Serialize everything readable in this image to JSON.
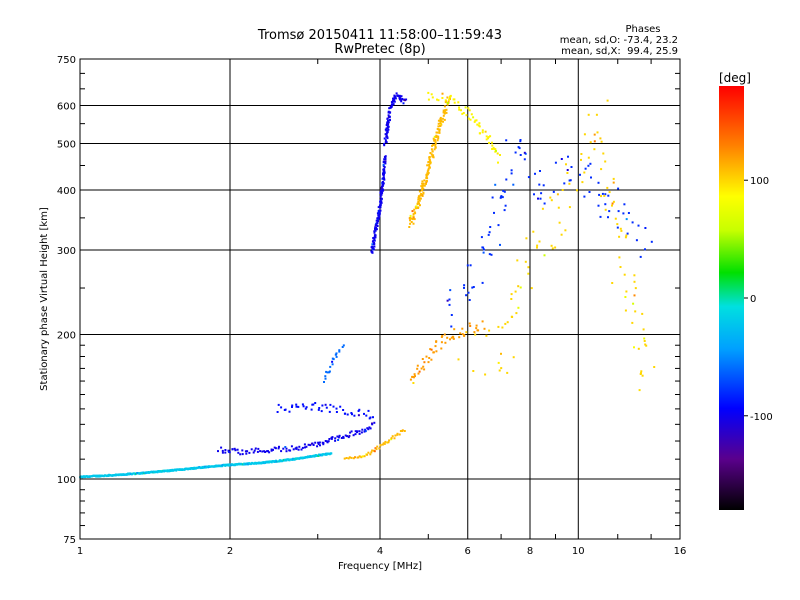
{
  "chart_data": {
    "type": "scatter",
    "title": "Tromsø 20150411 11:58:00–11:59:43",
    "subtitle": "RwPretec (8p)",
    "xlabel": "Frequency [MHz]",
    "ylabel": "Stationary phase Virtual Height [km]",
    "x_scale": "log",
    "y_scale": "log",
    "xlim": [
      1,
      16
    ],
    "ylim": [
      75,
      750
    ],
    "x_ticks": [
      {
        "value": 1,
        "label": "1"
      },
      {
        "value": 2,
        "label": "2"
      },
      {
        "value": 4,
        "label": "4"
      },
      {
        "value": 6,
        "label": "6"
      },
      {
        "value": 8,
        "label": "8"
      },
      {
        "value": 10,
        "label": "10"
      },
      {
        "value": 16,
        "label": "16"
      }
    ],
    "y_ticks": [
      {
        "value": 75,
        "label": "75"
      },
      {
        "value": 100,
        "label": "100"
      },
      {
        "value": 200,
        "label": "200"
      },
      {
        "value": 300,
        "label": "300"
      },
      {
        "value": 400,
        "label": "400"
      },
      {
        "value": 500,
        "label": "500"
      },
      {
        "value": 600,
        "label": "600"
      },
      {
        "value": 750,
        "label": "750"
      }
    ],
    "grid": true,
    "stats": {
      "heading": "Phases",
      "line_o": "mean, sd,O: -73.4, 23.2",
      "line_x": "mean, sd,X:  99.4, 25.9"
    },
    "colorbar": {
      "label": "[deg]",
      "range": [
        -180,
        180
      ],
      "ticks": [
        {
          "value": 100,
          "label": "100"
        },
        {
          "value": 0,
          "label": "0"
        },
        {
          "value": -100,
          "label": "-100"
        }
      ]
    },
    "traces": [
      {
        "name": "",
        "phase": -20,
        "step": 0.0025,
        "jitter": 0.006,
        "x": [
          1.0,
          1.2,
          1.5,
          1.8,
          2.0,
          2.3,
          2.7,
          3.0,
          3.2
        ],
        "y": [
          101,
          102,
          104,
          106,
          107,
          108,
          110,
          112,
          113
        ]
      },
      {
        "name": "",
        "phase": -100,
        "step": 0.008,
        "jitter": 0.025,
        "x": [
          1.9,
          2.1,
          2.4,
          2.7,
          3.0,
          3.2,
          3.6,
          3.9
        ],
        "y": [
          115,
          114,
          115,
          116,
          118,
          121,
          125,
          130
        ]
      },
      {
        "name": "",
        "phase": 110,
        "step": 0.01,
        "jitter": 0.015,
        "x": [
          3.4,
          3.6,
          3.8,
          4.0,
          4.2,
          4.5
        ],
        "y": [
          110,
          111,
          113,
          117,
          121,
          127
        ]
      },
      {
        "name": "",
        "phase": 120,
        "step": 0.012,
        "jitter": 0.05,
        "x": [
          4.6,
          4.9,
          5.2,
          5.6,
          6.0,
          6.5
        ],
        "y": [
          160,
          175,
          190,
          200,
          205,
          210
        ]
      },
      {
        "name": "",
        "phase": -100,
        "step": 0.004,
        "jitter": 0.025,
        "x": [
          3.85,
          3.9,
          3.95,
          4.0,
          4.05,
          4.1
        ],
        "y": [
          295,
          320,
          345,
          370,
          410,
          470
        ]
      },
      {
        "name": "",
        "phase": -100,
        "step": 0.004,
        "jitter": 0.03,
        "x": [
          4.1,
          4.15,
          4.2,
          4.3,
          4.5
        ],
        "y": [
          500,
          550,
          590,
          630,
          610
        ]
      },
      {
        "name": "",
        "phase": 110,
        "step": 0.005,
        "jitter": 0.04,
        "x": [
          4.6,
          4.8,
          5.0,
          5.2,
          5.5
        ],
        "y": [
          340,
          380,
          440,
          520,
          620
        ]
      },
      {
        "name": "",
        "phase": 90,
        "step": 0.012,
        "jitter": 0.05,
        "x": [
          5.0,
          5.5,
          6.0,
          6.5,
          7.0
        ],
        "y": [
          630,
          620,
          580,
          520,
          460
        ]
      },
      {
        "name": "",
        "phase": -60,
        "step": 0.015,
        "jitter": 0.03,
        "x": [
          3.1,
          3.2,
          3.3,
          3.4
        ],
        "y": [
          160,
          175,
          185,
          190
        ]
      },
      {
        "name": "",
        "phase": -90,
        "step": 0.012,
        "jitter": 0.04,
        "x": [
          2.5,
          2.9,
          3.2,
          3.6,
          3.9
        ],
        "y": [
          140,
          142,
          140,
          138,
          135
        ]
      },
      {
        "name": "",
        "phase": -80,
        "step": 0.025,
        "jitter": 0.2,
        "x": [
          5.5,
          6.5,
          7.5,
          8.5,
          10.0,
          12.0,
          14.0
        ],
        "y": [
          220,
          300,
          480,
          400,
          450,
          350,
          300
        ]
      },
      {
        "name": "",
        "phase": 100,
        "step": 0.03,
        "jitter": 0.25,
        "x": [
          6.0,
          7.0,
          8.0,
          9.0,
          11.0,
          13.0,
          14.0
        ],
        "y": [
          190,
          180,
          300,
          350,
          550,
          200,
          150
        ]
      }
    ]
  }
}
